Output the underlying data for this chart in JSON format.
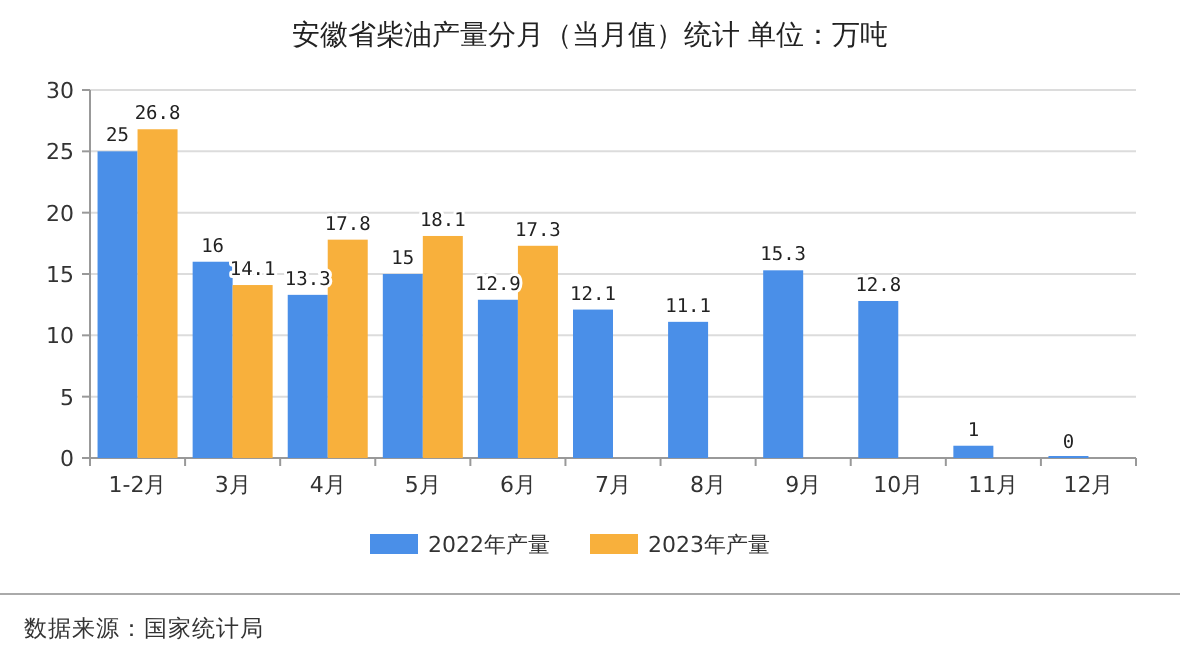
{
  "chart_data": {
    "type": "bar",
    "title": "安徽省柴油产量分月（当月值）统计  单位：万吨",
    "categories": [
      "1-2月",
      "3月",
      "4月",
      "5月",
      "6月",
      "7月",
      "8月",
      "9月",
      "10月",
      "11月",
      "12月"
    ],
    "series": [
      {
        "name": "2022年产量",
        "color": "#4a8fe8",
        "values": [
          25,
          16,
          13.3,
          15,
          12.9,
          12.1,
          11.1,
          15.3,
          12.8,
          1,
          0
        ]
      },
      {
        "name": "2023年产量",
        "color": "#f8b03c",
        "values": [
          26.8,
          14.1,
          17.8,
          18.1,
          17.3,
          null,
          null,
          null,
          null,
          null,
          null
        ]
      }
    ],
    "ylim": [
      0,
      30
    ],
    "yticks": [
      0,
      5,
      10,
      15,
      20,
      25,
      30
    ],
    "grid": "y",
    "legend": "bottom",
    "data_labels": true,
    "annotations": [
      "数据来源：国家统计局"
    ]
  }
}
